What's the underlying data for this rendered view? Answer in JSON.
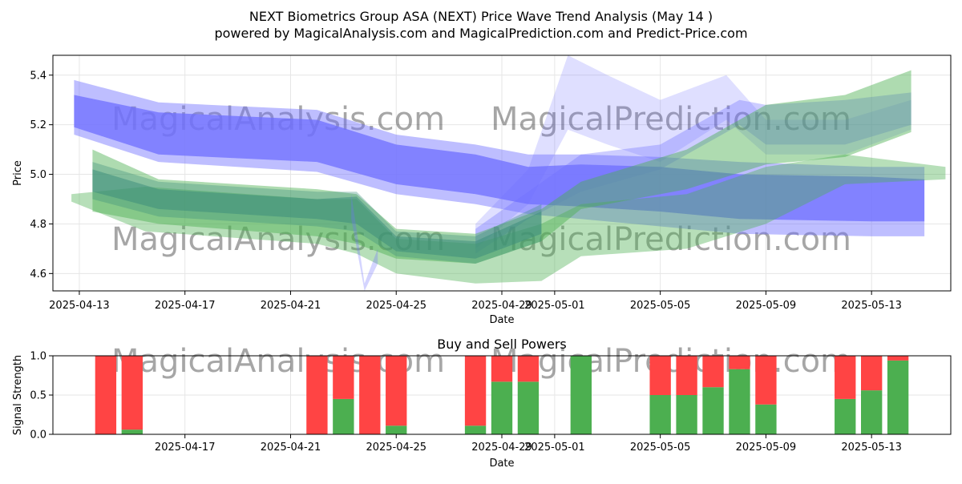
{
  "header": {
    "title": "NEXT Biometrics Group ASA (NEXT) Price Wave Trend Analysis (May 14 )",
    "subtitle": "powered by MagicalAnalysis.com and MagicalPrediction.com and Predict-Price.com"
  },
  "watermarks": [
    "MagicalAnalysis.com",
    "MagicalPrediction.com"
  ],
  "colors": {
    "blue_band": "#6f6fff",
    "green_band": "#4caf50",
    "buy": "#4caf50",
    "sell": "#ff4444",
    "grid": "#e6e6e6"
  },
  "chart_data": [
    {
      "type": "area",
      "title": "",
      "xlabel": "Date",
      "ylabel": "Price",
      "xlim": [
        "2025-04-12",
        "2025-05-16"
      ],
      "ylim": [
        4.53,
        5.48
      ],
      "x_ticks": [
        "2025-04-13",
        "2025-04-17",
        "2025-04-21",
        "2025-04-25",
        "2025-04-29",
        "2025-05-01",
        "2025-05-05",
        "2025-05-09",
        "2025-05-13"
      ],
      "y_ticks": [
        4.6,
        4.8,
        5.0,
        5.2,
        5.4
      ],
      "grid": true,
      "series": [
        {
          "color": "blue",
          "opacity": 0.75,
          "x": [
            "2025-04-12.8",
            "2025-04-16",
            "2025-04-22",
            "2025-04-25",
            "2025-04-28",
            "2025-04-30",
            "2025-05-02",
            "2025-05-05",
            "2025-05-08",
            "2025-05-13",
            "2025-05-15"
          ],
          "upper": [
            5.32,
            5.25,
            5.22,
            5.12,
            5.08,
            5.03,
            5.04,
            5.03,
            5.0,
            4.99,
            4.98
          ],
          "lower": [
            5.19,
            5.08,
            5.05,
            4.96,
            4.92,
            4.88,
            4.87,
            4.85,
            4.82,
            4.81,
            4.81
          ]
        },
        {
          "color": "blue",
          "opacity": 0.45,
          "x": [
            "2025-04-12.8",
            "2025-04-16",
            "2025-04-22",
            "2025-04-25",
            "2025-04-28",
            "2025-04-30",
            "2025-05-02",
            "2025-05-05",
            "2025-05-08",
            "2025-05-13",
            "2025-05-15"
          ],
          "upper": [
            5.38,
            5.29,
            5.26,
            5.16,
            5.12,
            5.08,
            5.08,
            5.07,
            5.05,
            5.03,
            5.03
          ],
          "lower": [
            5.16,
            5.05,
            5.01,
            4.92,
            4.88,
            4.84,
            4.82,
            4.79,
            4.76,
            4.75,
            4.75
          ]
        },
        {
          "color": "blue",
          "opacity": 0.35,
          "x": [
            "2025-04-28",
            "2025-04-30",
            "2025-05-02",
            "2025-05-05",
            "2025-05-08",
            "2025-05-09",
            "2025-05-12",
            "2025-05-14.5"
          ],
          "upper": [
            4.78,
            4.93,
            5.08,
            5.12,
            5.3,
            5.28,
            5.3,
            5.33
          ],
          "lower": [
            4.68,
            4.82,
            4.93,
            5.02,
            5.2,
            5.12,
            5.12,
            5.2
          ]
        },
        {
          "color": "blue",
          "opacity": 0.22,
          "x": [
            "2025-04-28",
            "2025-04-30",
            "2025-05-01.5",
            "2025-05-03",
            "2025-05-05",
            "2025-05-07.5",
            "2025-05-09",
            "2025-05-12",
            "2025-05-14.5"
          ],
          "upper": [
            4.8,
            5.02,
            5.48,
            5.4,
            5.3,
            5.4,
            5.22,
            5.22,
            5.3
          ],
          "lower": [
            4.7,
            4.88,
            5.18,
            5.12,
            5.05,
            5.22,
            5.08,
            5.08,
            5.18
          ]
        },
        {
          "color": "green",
          "opacity": 0.4,
          "x": [
            "2025-04-12.7",
            "2025-04-15.5",
            "2025-04-22",
            "2025-04-23.5",
            "2025-04-25",
            "2025-04-28",
            "2025-04-30.5",
            "2025-05-02",
            "2025-05-06",
            "2025-05-09",
            "2025-05-12",
            "2025-05-15.8"
          ],
          "upper": [
            4.92,
            4.95,
            4.9,
            4.9,
            4.74,
            4.72,
            4.8,
            4.88,
            4.92,
            5.03,
            5.08,
            5.03
          ],
          "lower": [
            4.89,
            4.77,
            4.72,
            4.68,
            4.6,
            4.56,
            4.57,
            4.67,
            4.7,
            4.8,
            4.96,
            4.98
          ]
        },
        {
          "color": "green",
          "opacity": 0.45,
          "x": [
            "2025-04-13.5",
            "2025-04-16",
            "2025-04-22",
            "2025-04-23.5",
            "2025-04-25",
            "2025-04-28",
            "2025-04-30.5",
            "2025-05-02",
            "2025-05-06",
            "2025-05-09",
            "2025-05-12",
            "2025-05-14.5"
          ],
          "upper": [
            5.1,
            4.98,
            4.94,
            4.92,
            4.78,
            4.76,
            4.86,
            4.97,
            5.1,
            5.28,
            5.32,
            5.42
          ],
          "lower": [
            4.85,
            4.8,
            4.75,
            4.72,
            4.66,
            4.64,
            4.73,
            4.86,
            4.94,
            5.04,
            5.07,
            5.17
          ]
        },
        {
          "color": "teal",
          "opacity": 0.5,
          "x": [
            "2025-04-13.5",
            "2025-04-16",
            "2025-04-22",
            "2025-04-23.5",
            "2025-04-25",
            "2025-04-28",
            "2025-04-30.5"
          ],
          "upper": [
            5.02,
            4.94,
            4.9,
            4.91,
            4.75,
            4.73,
            4.85
          ],
          "lower": [
            4.93,
            4.86,
            4.82,
            4.8,
            4.69,
            4.66,
            4.76
          ]
        },
        {
          "color": "teal",
          "opacity": 0.35,
          "x": [
            "2025-04-13.5",
            "2025-04-16",
            "2025-04-22",
            "2025-04-23.5",
            "2025-04-25",
            "2025-04-28",
            "2025-04-30.5"
          ],
          "upper": [
            5.05,
            4.97,
            4.93,
            4.93,
            4.77,
            4.75,
            4.88
          ],
          "lower": [
            4.9,
            4.83,
            4.79,
            4.77,
            4.67,
            4.64,
            4.73
          ]
        },
        {
          "color": "blue",
          "opacity": 0.3,
          "x": [
            "2025-04-23.3",
            "2025-04-23.8",
            "2025-04-24.3"
          ],
          "upper": [
            4.92,
            4.56,
            4.7
          ],
          "lower": [
            4.82,
            4.53,
            4.64
          ]
        }
      ]
    },
    {
      "type": "bar",
      "title": "Buy and Sell Powers",
      "xlabel": "Date",
      "ylabel": "Signal Strength",
      "xlim": [
        "2025-04-12",
        "2025-05-16"
      ],
      "ylim": [
        0,
        1.0
      ],
      "x_ticks": [
        "2025-04-17",
        "2025-04-21",
        "2025-04-25",
        "2025-04-29",
        "2025-05-01",
        "2025-05-05",
        "2025-05-09",
        "2025-05-13"
      ],
      "y_ticks": [
        0.0,
        0.5,
        1.0
      ],
      "x": [
        "2025-04-14",
        "2025-04-15",
        "2025-04-22",
        "2025-04-23",
        "2025-04-24",
        "2025-04-25",
        "2025-04-28",
        "2025-04-29",
        "2025-04-30",
        "2025-05-02",
        "2025-05-05",
        "2025-05-06",
        "2025-05-07",
        "2025-05-08",
        "2025-05-09",
        "2025-05-12",
        "2025-05-13",
        "2025-05-14"
      ],
      "series": [
        {
          "color": "green",
          "values": [
            0.0,
            0.06,
            0.0,
            0.45,
            0.0,
            0.11,
            0.11,
            0.67,
            0.67,
            1.0,
            0.5,
            0.5,
            0.6,
            0.83,
            0.38,
            0.45,
            0.56,
            0.94
          ]
        },
        {
          "color": "red",
          "values": [
            1.0,
            0.94,
            1.0,
            0.55,
            1.0,
            0.89,
            0.89,
            0.33,
            0.33,
            0.0,
            0.5,
            0.5,
            0.4,
            0.17,
            0.62,
            0.55,
            0.44,
            0.06
          ]
        }
      ]
    }
  ]
}
